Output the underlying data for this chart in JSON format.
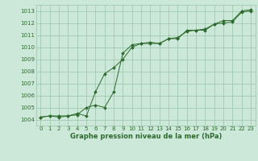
{
  "line1_x": [
    0,
    1,
    2,
    3,
    4,
    5,
    6,
    7,
    8,
    9,
    10,
    11,
    12,
    13,
    14,
    15,
    16,
    17,
    18,
    19,
    20,
    21,
    22,
    23
  ],
  "line1_y": [
    1004.2,
    1004.3,
    1004.2,
    1004.3,
    1004.5,
    1004.3,
    1006.3,
    1007.8,
    1008.3,
    1009.0,
    1010.0,
    1010.3,
    1010.3,
    1010.3,
    1010.7,
    1010.8,
    1011.3,
    1011.4,
    1011.5,
    1011.9,
    1012.0,
    1012.1,
    1012.9,
    1013.0
  ],
  "line2_x": [
    0,
    1,
    2,
    3,
    4,
    5,
    6,
    7,
    8,
    9,
    10,
    11,
    12,
    13,
    14,
    15,
    16,
    17,
    18,
    19,
    20,
    21,
    22,
    23
  ],
  "line2_y": [
    1004.2,
    1004.3,
    1004.3,
    1004.3,
    1004.4,
    1005.0,
    1005.2,
    1005.0,
    1006.3,
    1009.5,
    1010.2,
    1010.3,
    1010.4,
    1010.3,
    1010.7,
    1010.7,
    1011.4,
    1011.4,
    1011.4,
    1011.9,
    1012.2,
    1012.2,
    1013.0,
    1013.1
  ],
  "line_color": "#2d6a2d",
  "bg_color": "#cce8d8",
  "grid_color": "#99c4aa",
  "xlabel": "Graphe pression niveau de la mer (hPa)",
  "ylim": [
    1003.5,
    1013.5
  ],
  "xlim": [
    -0.5,
    23.5
  ],
  "yticks": [
    1004,
    1005,
    1006,
    1007,
    1008,
    1009,
    1010,
    1011,
    1012,
    1013
  ],
  "xticks": [
    0,
    1,
    2,
    3,
    4,
    5,
    6,
    7,
    8,
    9,
    10,
    11,
    12,
    13,
    14,
    15,
    16,
    17,
    18,
    19,
    20,
    21,
    22,
    23
  ],
  "tick_fontsize": 5.0,
  "label_fontsize": 6.0
}
